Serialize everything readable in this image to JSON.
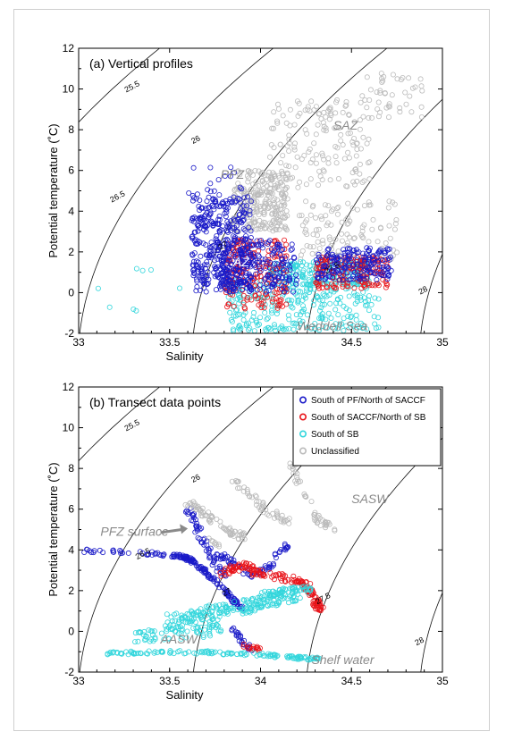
{
  "chart_data": [
    {
      "type": "scatter",
      "title": "(a) Vertical profiles",
      "xlabel": "Salinity",
      "ylabel": "Potential temperature (˚C)",
      "xlim": [
        33,
        35
      ],
      "ylim": [
        -2,
        12
      ],
      "xticks": [
        "33",
        "33.5",
        "34",
        "34.5",
        "35"
      ],
      "yticks": [
        "-2",
        "0",
        "2",
        "4",
        "6",
        "8",
        "10",
        "12"
      ],
      "isopycnals": [
        {
          "label": "25.5",
          "sigma": 25.5,
          "label_at": [
            33.3,
            10.0
          ]
        },
        {
          "label": "26",
          "sigma": 26.0,
          "label_at": [
            33.65,
            7.4
          ]
        },
        {
          "label": "26.5",
          "sigma": 26.5,
          "label_at": [
            33.22,
            4.6
          ]
        },
        {
          "label": "27",
          "sigma": 27.0,
          "label_at": [
            33.8,
            2.2
          ]
        },
        {
          "label": "27.5",
          "sigma": 27.5,
          "label_at": [
            34.4,
            1.1
          ]
        },
        {
          "label": "28",
          "sigma": 28.0,
          "label_at": [
            34.9,
            0.0
          ]
        }
      ],
      "annotations": [
        {
          "text": "SAZ",
          "x": 34.4,
          "y": 8.0,
          "color": "#8a8a8a"
        },
        {
          "text": "PFZ",
          "x": 33.78,
          "y": 5.6,
          "color": "#8a8a8a"
        },
        {
          "text": "AZ",
          "x": 33.85,
          "y": 1.3,
          "color": "#ffffff"
        },
        {
          "text": "Weddell Sea",
          "x": 34.2,
          "y": -1.85,
          "color": "#8a8a8a"
        }
      ],
      "series": [
        {
          "name": "Unclassified",
          "color": "#bbbbbb",
          "seed": 11,
          "clusters": [
            {
              "x": [
                33.85,
                34.15
              ],
              "y": [
                3.0,
                6.0
              ],
              "n": 260
            },
            {
              "x": [
                34.05,
                34.6
              ],
              "y": [
                5.0,
                9.5
              ],
              "n": 150
            },
            {
              "x": [
                34.55,
                34.9
              ],
              "y": [
                8.5,
                10.8
              ],
              "n": 45
            },
            {
              "x": [
                34.2,
                34.75
              ],
              "y": [
                1.6,
                4.5
              ],
              "n": 110
            }
          ]
        },
        {
          "name": "South of SB",
          "color": "#33d6dc",
          "seed": 23,
          "clusters": [
            {
              "x": [
                33.82,
                34.65
              ],
              "y": [
                -1.9,
                0.6
              ],
              "n": 280
            },
            {
              "x": [
                34.05,
                34.6
              ],
              "y": [
                0.4,
                1.6
              ],
              "n": 200
            },
            {
              "x": [
                33.1,
                33.6
              ],
              "y": [
                -1.0,
                1.2
              ],
              "n": 8
            }
          ]
        },
        {
          "name": "South of SACCF/North of SB",
          "color": "#e8141a",
          "seed": 37,
          "clusters": [
            {
              "x": [
                33.8,
                34.15
              ],
              "y": [
                -0.8,
                2.6
              ],
              "n": 200
            },
            {
              "x": [
                34.3,
                34.7
              ],
              "y": [
                0.2,
                1.8
              ],
              "n": 170
            }
          ]
        },
        {
          "name": "South of PF/North of SACCF",
          "color": "#1a1ac8",
          "seed": 53,
          "clusters": [
            {
              "x": [
                33.62,
                33.95
              ],
              "y": [
                0.0,
                4.8
              ],
              "n": 380
            },
            {
              "x": [
                33.75,
                34.2
              ],
              "y": [
                0.0,
                2.6
              ],
              "n": 220
            },
            {
              "x": [
                34.3,
                34.72
              ],
              "y": [
                0.6,
                2.2
              ],
              "n": 180
            },
            {
              "x": [
                33.6,
                33.9
              ],
              "y": [
                4.8,
                6.2
              ],
              "n": 15
            }
          ]
        }
      ]
    },
    {
      "type": "scatter",
      "title": "(b) Transect data points",
      "xlabel": "Salinity",
      "ylabel": "Potential temperature (˚C)",
      "xlim": [
        33,
        35
      ],
      "ylim": [
        -2,
        12
      ],
      "xticks": [
        "33",
        "33.5",
        "34",
        "34.5",
        "35"
      ],
      "yticks": [
        "-2",
        "0",
        "2",
        "4",
        "6",
        "8",
        "10",
        "12"
      ],
      "legend_position": "top-right",
      "isopycnals": [
        {
          "label": "25.5",
          "sigma": 25.5,
          "label_at": [
            33.3,
            10.0
          ]
        },
        {
          "label": "26",
          "sigma": 26.0,
          "label_at": [
            33.65,
            7.4
          ]
        },
        {
          "label": "26.5",
          "sigma": 26.5,
          "label_at": [
            33.36,
            3.7
          ]
        },
        {
          "label": "27",
          "sigma": 27.0,
          "label_at": [
            33.82,
            1.8
          ]
        },
        {
          "label": "27.5",
          "sigma": 27.5,
          "label_at": [
            34.35,
            1.5
          ]
        },
        {
          "label": "28",
          "sigma": 28.0,
          "label_at": [
            34.88,
            -0.6
          ]
        }
      ],
      "annotations": [
        {
          "text": "PFZ surface",
          "x": 33.12,
          "y": 4.7,
          "color": "#8a8a8a"
        },
        {
          "text": "SASW",
          "x": 34.5,
          "y": 6.3,
          "color": "#8a8a8a"
        },
        {
          "text": "AASW",
          "x": 33.45,
          "y": -0.6,
          "color": "#8a8a8a"
        },
        {
          "text": "Shelf water",
          "x": 34.28,
          "y": -1.6,
          "color": "#8a8a8a"
        }
      ],
      "arrow": {
        "from": [
          33.45,
          4.85
        ],
        "to": [
          33.6,
          5.05
        ]
      },
      "series": [
        {
          "name": "South of PF/North of SACCF",
          "color": "#1a1ac8",
          "seed": 61,
          "paths": [
            {
              "pts": [
                [
                  33.02,
                  3.95
                ],
                [
                  33.35,
                  3.85
                ],
                [
                  33.55,
                  3.7
                ],
                [
                  33.62,
                  3.5
                ],
                [
                  33.7,
                  2.9
                ],
                [
                  33.8,
                  2.0
                ],
                [
                  33.9,
                  1.1
                ]
              ],
              "n": 170,
              "spread": [
                0.012,
                0.1
              ]
            },
            {
              "pts": [
                [
                  33.6,
                  6.0
                ],
                [
                  33.65,
                  5.2
                ],
                [
                  33.72,
                  3.8
                ],
                [
                  33.8,
                  2.8
                ]
              ],
              "n": 60,
              "spread": [
                0.02,
                0.15
              ]
            },
            {
              "pts": [
                [
                  33.75,
                  3.9
                ],
                [
                  33.85,
                  3.3
                ],
                [
                  33.95,
                  2.7
                ],
                [
                  34.05,
                  3.2
                ],
                [
                  34.15,
                  4.4
                ]
              ],
              "n": 70,
              "spread": [
                0.02,
                0.12
              ]
            },
            {
              "pts": [
                [
                  33.85,
                  0.2
                ],
                [
                  33.9,
                  -0.5
                ],
                [
                  33.95,
                  -0.9
                ]
              ],
              "n": 25,
              "spread": [
                0.015,
                0.1
              ]
            }
          ]
        },
        {
          "name": "South of SACCF/North of SB",
          "color": "#e8141a",
          "seed": 71,
          "paths": [
            {
              "pts": [
                [
                  33.78,
                  2.8
                ],
                [
                  33.9,
                  3.3
                ],
                [
                  34.0,
                  2.8
                ],
                [
                  34.15,
                  2.6
                ],
                [
                  34.25,
                  2.3
                ],
                [
                  34.3,
                  1.5
                ],
                [
                  34.33,
                  1.1
                ]
              ],
              "n": 170,
              "spread": [
                0.02,
                0.18
              ]
            },
            {
              "pts": [
                [
                  33.9,
                  -0.7
                ],
                [
                  34.0,
                  -0.9
                ]
              ],
              "n": 15,
              "spread": [
                0.02,
                0.1
              ]
            }
          ]
        },
        {
          "name": "South of SB",
          "color": "#33d6dc",
          "seed": 83,
          "paths": [
            {
              "pts": [
                [
                  33.5,
                  0.5
                ],
                [
                  33.7,
                  0.8
                ],
                [
                  33.9,
                  1.2
                ],
                [
                  34.05,
                  1.6
                ],
                [
                  34.2,
                  1.9
                ]
              ],
              "n": 220,
              "spread": [
                0.03,
                0.4
              ]
            },
            {
              "pts": [
                [
                  33.3,
                  -0.3
                ],
                [
                  33.55,
                  -0.1
                ],
                [
                  33.8,
                  0.1
                ]
              ],
              "n": 70,
              "spread": [
                0.03,
                0.3
              ]
            },
            {
              "pts": [
                [
                  33.15,
                  -1.1
                ],
                [
                  33.45,
                  -1.0
                ],
                [
                  33.75,
                  -1.05
                ],
                [
                  34.0,
                  -1.15
                ],
                [
                  34.2,
                  -1.3
                ],
                [
                  34.32,
                  -1.35
                ]
              ],
              "n": 140,
              "spread": [
                0.01,
                0.08
              ]
            },
            {
              "pts": [
                [
                  34.05,
                  1.8
                ],
                [
                  34.2,
                  2.1
                ],
                [
                  34.3,
                  2.0
                ]
              ],
              "n": 30,
              "spread": [
                0.02,
                0.15
              ]
            }
          ]
        },
        {
          "name": "Unclassified",
          "color": "#bbbbbb",
          "seed": 97,
          "paths": [
            {
              "pts": [
                [
                  33.6,
                  6.4
                ],
                [
                  33.72,
                  5.6
                ],
                [
                  33.82,
                  4.9
                ],
                [
                  33.92,
                  4.6
                ]
              ],
              "n": 70,
              "spread": [
                0.02,
                0.15
              ]
            },
            {
              "pts": [
                [
                  33.85,
                  7.6
                ],
                [
                  33.95,
                  6.5
                ],
                [
                  34.05,
                  5.8
                ],
                [
                  34.15,
                  5.3
                ]
              ],
              "n": 50,
              "spread": [
                0.02,
                0.2
              ]
            },
            {
              "pts": [
                [
                  34.15,
                  8.5
                ],
                [
                  34.2,
                  7.5
                ],
                [
                  34.3,
                  5.6
                ],
                [
                  34.4,
                  5.1
                ]
              ],
              "n": 45,
              "spread": [
                0.02,
                0.2
              ]
            },
            {
              "pts": [
                [
                  33.72,
                  4.5
                ],
                [
                  33.78,
                  4.2
                ]
              ],
              "n": 8,
              "spread": [
                0.01,
                0.1
              ]
            }
          ]
        }
      ]
    }
  ]
}
